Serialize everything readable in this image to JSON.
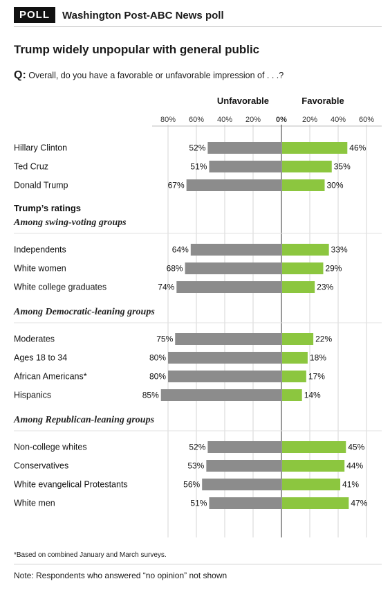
{
  "header": {
    "tag": "POLL",
    "title": "Washington Post-ABC News poll"
  },
  "title": "Trump widely unpopular with general public",
  "question": {
    "prefix": "Q:",
    "text": "Overall, do you have a favorable or unfavorable impression of . . .?"
  },
  "footnote": "*Based on combined January and March surveys.",
  "note": "Note: Respondents who answered “no opinion” not shown",
  "colors": {
    "unfavorable": "#8c8c8c",
    "favorable": "#8cc63f",
    "grid": "#d6d6d6",
    "axis": "#555555"
  },
  "chart_data": {
    "type": "bar",
    "orientation": "horizontal-diverging",
    "series": [
      {
        "name": "Unfavorable",
        "side": "left"
      },
      {
        "name": "Favorable",
        "side": "right"
      }
    ],
    "tick_labels_left": [
      "80%",
      "60%",
      "40%",
      "20%",
      "0%"
    ],
    "tick_labels_right": [
      "20%",
      "40%",
      "60%"
    ],
    "xlim": [
      -85,
      65
    ],
    "grid": true,
    "sections": [
      {
        "heading": "",
        "subheading": "",
        "rows": [
          {
            "label": "Hillary Clinton",
            "unfavorable": 52,
            "favorable": 46
          },
          {
            "label": "Ted Cruz",
            "unfavorable": 51,
            "favorable": 35
          },
          {
            "label": "Donald Trump",
            "unfavorable": 67,
            "favorable": 30
          }
        ]
      },
      {
        "heading": "Trump’s ratings",
        "subheading": "Among swing-voting groups",
        "rows": [
          {
            "label": "Independents",
            "unfavorable": 64,
            "favorable": 33
          },
          {
            "label": "White women",
            "unfavorable": 68,
            "favorable": 29
          },
          {
            "label": "White college graduates",
            "unfavorable": 74,
            "favorable": 23
          }
        ]
      },
      {
        "heading": "",
        "subheading": "Among Democratic-leaning groups",
        "rows": [
          {
            "label": "Moderates",
            "unfavorable": 75,
            "favorable": 22
          },
          {
            "label": "Ages 18 to 34",
            "unfavorable": 80,
            "favorable": 18
          },
          {
            "label": "African Americans*",
            "unfavorable": 80,
            "favorable": 17
          },
          {
            "label": "Hispanics",
            "unfavorable": 85,
            "favorable": 14
          }
        ]
      },
      {
        "heading": "",
        "subheading": "Among Republican-leaning groups",
        "rows": [
          {
            "label": "Non-college whites",
            "unfavorable": 52,
            "favorable": 45
          },
          {
            "label": "Conservatives",
            "unfavorable": 53,
            "favorable": 44
          },
          {
            "label": "White evangelical Protestants",
            "unfavorable": 56,
            "favorable": 41
          },
          {
            "label": "White men",
            "unfavorable": 51,
            "favorable": 47
          }
        ]
      }
    ]
  }
}
